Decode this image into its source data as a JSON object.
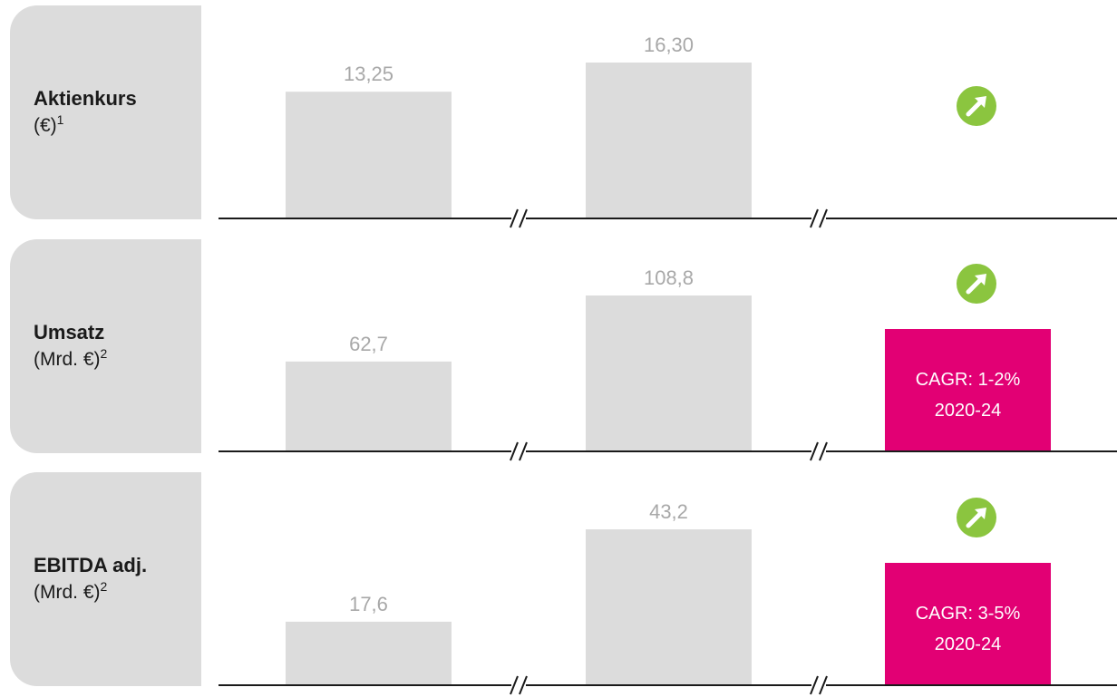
{
  "colors": {
    "bar": "#dcdcdc",
    "bar_label": "#a8a8a8",
    "card": "#dcdcdc",
    "axis": "#1a1a1a",
    "trend_icon": "#8bc53f",
    "cagr_box": "#e20074"
  },
  "icons": {
    "trend": "arrow-up-right-icon",
    "axis_break": "axis-break-icon"
  },
  "chart_data": [
    {
      "type": "bar",
      "name": "Aktienkurs",
      "unit": "(€)",
      "footnote": "1",
      "values": [
        13.25,
        16.3
      ],
      "value_labels": [
        "13,25",
        "16,30"
      ],
      "trend": "up",
      "cagr": null
    },
    {
      "type": "bar",
      "name": "Umsatz",
      "unit": "(Mrd. €)",
      "footnote": "2",
      "values": [
        62.7,
        108.8
      ],
      "value_labels": [
        "62,7",
        "108,8"
      ],
      "trend": "up",
      "cagr": {
        "text": "CAGR: 1-2%",
        "period": "2020-24"
      }
    },
    {
      "type": "bar",
      "name": "EBITDA adj.",
      "unit": "(Mrd. €)",
      "footnote": "2",
      "values": [
        17.6,
        43.2
      ],
      "value_labels": [
        "17,6",
        "43,2"
      ],
      "trend": "up",
      "cagr": {
        "text": "CAGR: 3-5%",
        "period": "2020-24"
      }
    }
  ]
}
